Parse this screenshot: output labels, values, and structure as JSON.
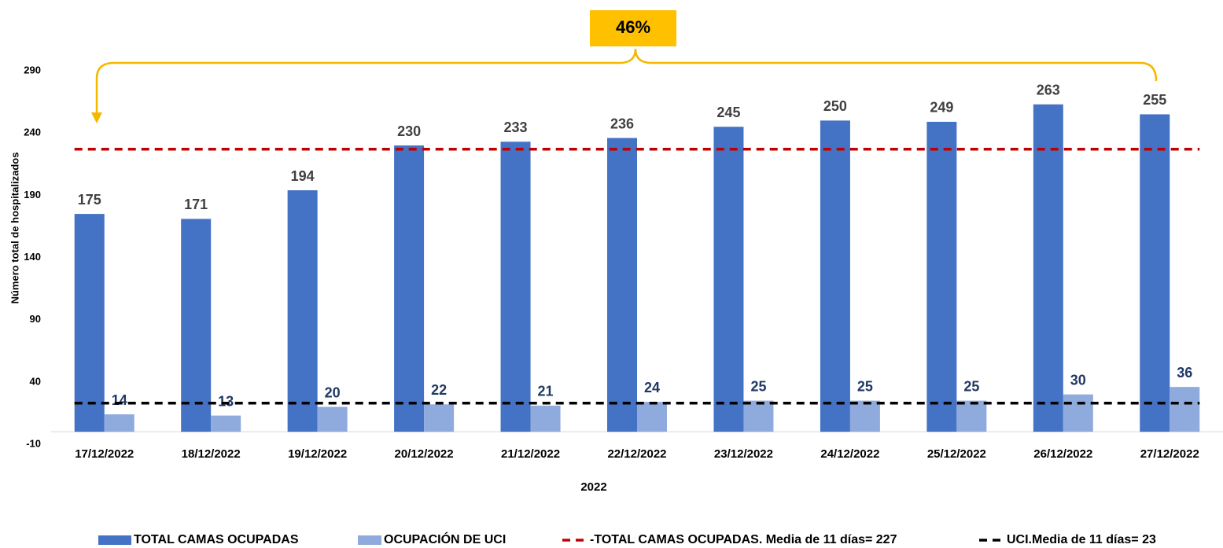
{
  "chart_data": {
    "type": "bar",
    "y_axis_label": "Número total de hospitalizados",
    "x_axis_label": "2022",
    "categories": [
      "17/12/2022",
      "18/12/2022",
      "19/12/2022",
      "20/12/2022",
      "21/12/2022",
      "22/12/2022",
      "23/12/2022",
      "24/12/2022",
      "25/12/2022",
      "26/12/2022",
      "27/12/2022"
    ],
    "series": [
      {
        "name": "TOTAL CAMAS OCUPADAS",
        "color": "#4472c4",
        "label_color": "#404040",
        "values": [
          175,
          171,
          194,
          230,
          233,
          236,
          245,
          250,
          249,
          263,
          255
        ]
      },
      {
        "name": "OCUPACIÓN DE UCI",
        "color": "#8faadc",
        "label_color": "#1f3864",
        "values": [
          14,
          13,
          20,
          22,
          21,
          24,
          25,
          25,
          25,
          30,
          36
        ]
      }
    ],
    "reference_lines": [
      {
        "name": "-TOTAL CAMAS OCUPADAS. Media de 11 días= 227",
        "value": 227,
        "color": "#c00000"
      },
      {
        "name": "UCI.Media de 11 días= 23",
        "value": 23,
        "color": "#000000"
      }
    ],
    "annotation": "46%",
    "ylim": [
      -10,
      290
    ],
    "yticks": [
      -10,
      40,
      90,
      140,
      190,
      240,
      290
    ],
    "grid": false
  }
}
